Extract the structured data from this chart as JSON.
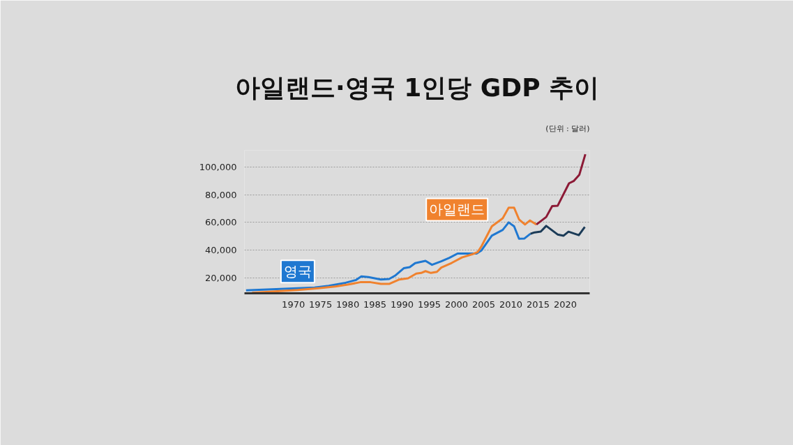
{
  "chart_data": {
    "type": "line",
    "title": "아일랜드·영국 1인당 GDP 추이",
    "subtitle": "(단위 : 달러)",
    "xlim": [
      1961,
      2024.5
    ],
    "xticks": [
      1970,
      1975,
      1980,
      1985,
      1990,
      1995,
      2000,
      2005,
      2010,
      2015,
      2020
    ],
    "ylim": [
      8700,
      112000
    ],
    "yticks": [
      {
        "value": 20000,
        "label": "20,000"
      },
      {
        "value": 40000,
        "label": "40,000"
      },
      {
        "value": 60000,
        "label": "60,000"
      },
      {
        "value": 80000,
        "label": "80,000"
      },
      {
        "value": 100000,
        "label": "100,000"
      }
    ],
    "grid": "y",
    "line_style": "solid",
    "marker": "none",
    "series": [
      {
        "name": "영국",
        "color": "#1f78d1",
        "x": [
          1961.3,
          1970.8,
          1973.9,
          1976.5,
          1979.6,
          1981.5,
          1982.5,
          1983.8,
          1986.1,
          1987.6,
          1988.8,
          1990.3,
          1991.4,
          1992.4,
          1994.3,
          1995.5,
          1997.2,
          1998.7,
          2000.2,
          2003.7,
          2004.6,
          2006.5,
          2008.5,
          2009.6,
          2010.6,
          2011.5,
          2012.5,
          2013.6
        ],
        "values": [
          10800,
          12400,
          12900,
          14100,
          16300,
          18300,
          20900,
          20400,
          18700,
          19000,
          21700,
          26800,
          27600,
          30500,
          32100,
          29300,
          31800,
          34300,
          37400,
          37400,
          39700,
          50300,
          54500,
          59900,
          57100,
          48100,
          48300,
          51700
        ]
      },
      {
        "color": "#1b3b57",
        "x": [
          2013.6,
          2014.4,
          2015.5,
          2016.5,
          2018.6,
          2019.7,
          2020.6,
          2022.5,
          2023.6
        ],
        "values": [
          51700,
          52700,
          53300,
          57400,
          51200,
          50300,
          53200,
          50700,
          56600
        ]
      },
      {
        "name": "아일랜드",
        "color": "#f0822e",
        "x": [
          1962.4,
          1970.8,
          1974.6,
          1977.7,
          1980.0,
          1982.3,
          1984.2,
          1986.1,
          1987.6,
          1989.5,
          1991.1,
          1992.6,
          1993.5,
          1994.3,
          1995.3,
          1996.4,
          1997.2,
          1999.1,
          2001.0,
          2002.9,
          2003.9,
          2004.6,
          2006.5,
          2008.5,
          2009.6,
          2010.6,
          2011.5,
          2012.6,
          2013.5,
          2014.7
        ],
        "values": [
          9100,
          11100,
          12400,
          13600,
          15000,
          16700,
          16700,
          15500,
          15500,
          18700,
          19500,
          22900,
          23400,
          24700,
          23400,
          24200,
          27300,
          30600,
          34600,
          36900,
          38500,
          42700,
          57100,
          62900,
          70500,
          70500,
          62100,
          58400,
          61300,
          58400
        ]
      },
      {
        "color": "#8c1a36",
        "x": [
          2014.7,
          2016.5,
          2017.6,
          2018.6,
          2020.7,
          2021.6,
          2022.6,
          2023.7
        ],
        "values": [
          58400,
          63800,
          71700,
          71900,
          88200,
          89900,
          94400,
          109200
        ]
      }
    ]
  }
}
